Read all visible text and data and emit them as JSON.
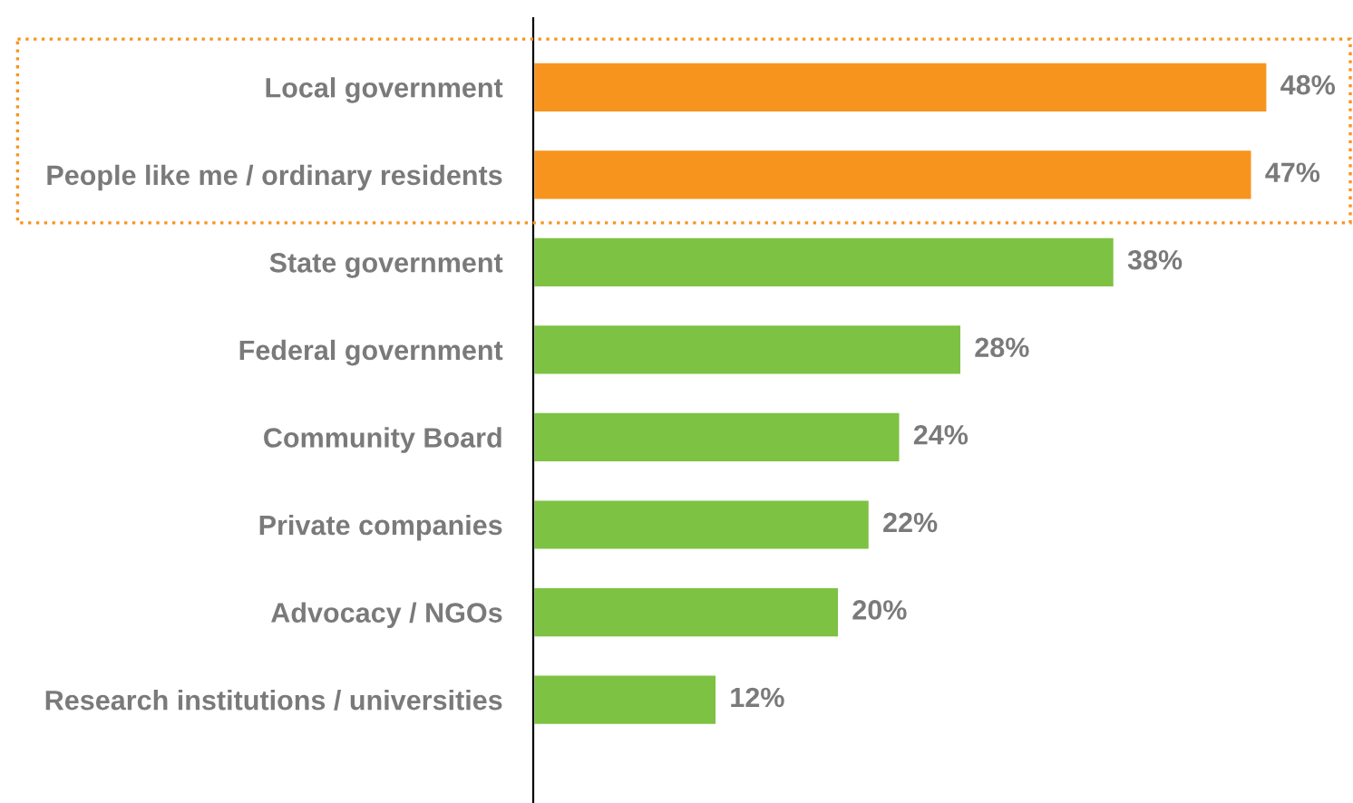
{
  "chart_data": {
    "type": "bar",
    "orientation": "horizontal",
    "categories": [
      "Local government",
      "People like me / ordinary residents",
      "State government",
      "Federal government",
      "Community Board",
      "Private companies",
      "Advocacy / NGOs",
      "Research institutions / universities"
    ],
    "values": [
      48,
      47,
      38,
      28,
      24,
      22,
      20,
      12
    ],
    "colors": [
      "#f7941d",
      "#f7941d",
      "#7dc242",
      "#7dc242",
      "#7dc242",
      "#7dc242",
      "#7dc242",
      "#7dc242"
    ],
    "value_labels": [
      "48%",
      "47%",
      "38%",
      "28%",
      "24%",
      "22%",
      "20%",
      "12%"
    ],
    "grid": false,
    "legend": false
  }
}
